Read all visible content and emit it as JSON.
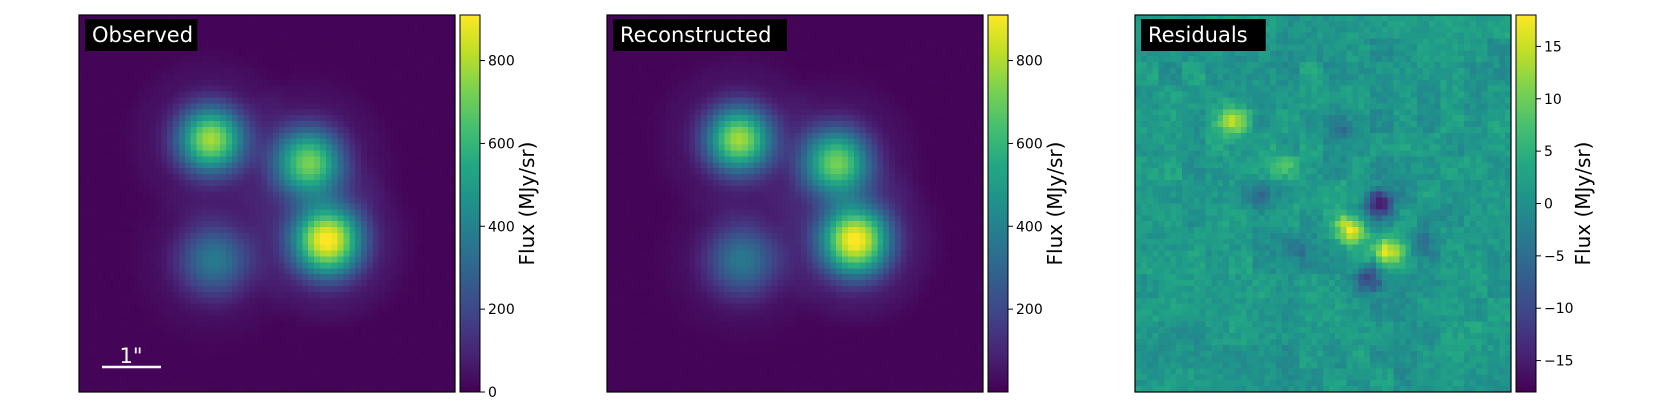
{
  "chart_data": [
    {
      "type": "heatmap",
      "title": "Observed",
      "colormap": "viridis",
      "colorbar": {
        "label": "Flux (MJy/sr)",
        "range": [
          0,
          910
        ],
        "ticks": [
          0,
          200,
          400,
          600,
          800
        ]
      },
      "scalebar_label": "1\"",
      "sources": [
        {
          "x": 0.35,
          "y": 0.33,
          "peak": 780,
          "sigma": 0.062
        },
        {
          "x": 0.61,
          "y": 0.39,
          "peak": 700,
          "sigma": 0.064
        },
        {
          "x": 0.36,
          "y": 0.65,
          "peak": 360,
          "sigma": 0.068
        },
        {
          "x": 0.66,
          "y": 0.6,
          "peak": 910,
          "sigma": 0.066
        }
      ]
    },
    {
      "type": "heatmap",
      "title": "Reconstructed",
      "colormap": "viridis",
      "colorbar": {
        "label": "Flux (MJy/sr)",
        "range": [
          0,
          910
        ],
        "ticks": [
          200,
          400,
          600,
          800
        ]
      },
      "sources": [
        {
          "x": 0.35,
          "y": 0.33,
          "peak": 775,
          "sigma": 0.062
        },
        {
          "x": 0.61,
          "y": 0.39,
          "peak": 695,
          "sigma": 0.064
        },
        {
          "x": 0.36,
          "y": 0.65,
          "peak": 355,
          "sigma": 0.068
        },
        {
          "x": 0.66,
          "y": 0.6,
          "peak": 905,
          "sigma": 0.066
        }
      ]
    },
    {
      "type": "heatmap",
      "title": "Residuals",
      "colormap": "viridis",
      "colorbar": {
        "label": "Flux (MJy/sr)",
        "range": [
          -18,
          18
        ],
        "ticks": [
          -15,
          -10,
          -5,
          0,
          5,
          10,
          15
        ],
        "tick_labels": [
          "−15",
          "−10",
          "−5",
          "0",
          "5",
          "10",
          "15"
        ]
      },
      "features": [
        {
          "x": 0.26,
          "y": 0.28,
          "value": 12
        },
        {
          "x": 0.4,
          "y": 0.4,
          "value": 6
        },
        {
          "x": 0.57,
          "y": 0.57,
          "value": 16
        },
        {
          "x": 0.67,
          "y": 0.63,
          "value": 16
        },
        {
          "x": 0.65,
          "y": 0.5,
          "value": -17
        },
        {
          "x": 0.62,
          "y": 0.7,
          "value": -12
        },
        {
          "x": 0.42,
          "y": 0.62,
          "value": -6
        },
        {
          "x": 0.33,
          "y": 0.48,
          "value": -6
        },
        {
          "x": 0.77,
          "y": 0.6,
          "value": -6
        },
        {
          "x": 0.55,
          "y": 0.3,
          "value": -5
        }
      ]
    }
  ]
}
